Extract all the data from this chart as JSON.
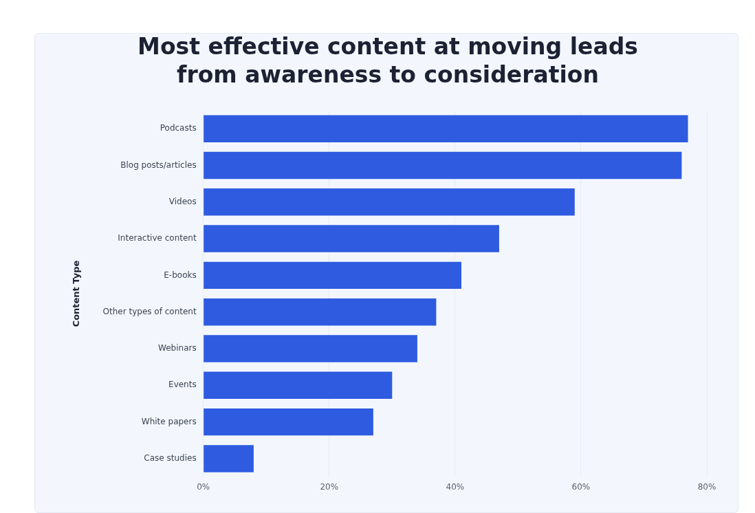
{
  "chart_data": {
    "type": "bar",
    "orientation": "horizontal",
    "title": "Most effective content at moving leads\nfrom awareness to consideration",
    "ylabel": "Content Type",
    "categories": [
      "Podcasts",
      "Blog posts/articles",
      "Videos",
      "Interactive content",
      "E-books",
      "Other types of content",
      "Webinars",
      "Events",
      "White papers",
      "Case studies"
    ],
    "values": [
      77,
      76,
      59,
      47,
      41,
      37,
      34,
      30,
      27,
      8
    ],
    "color": "#2f5be0",
    "xlim": [
      0,
      80
    ],
    "xticks": [
      {
        "value": 0,
        "label": "0%"
      },
      {
        "value": 20,
        "label": "20%"
      },
      {
        "value": 40,
        "label": "40%"
      },
      {
        "value": 60,
        "label": "60%"
      },
      {
        "value": 80,
        "label": "80%"
      }
    ],
    "grid": "x"
  }
}
